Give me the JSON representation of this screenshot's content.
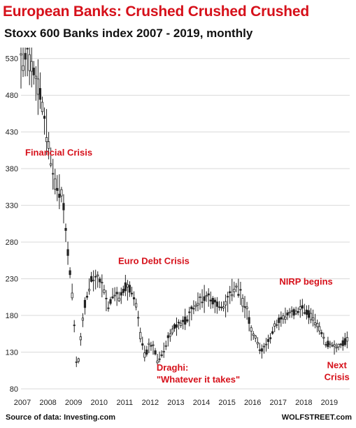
{
  "title": "European Banks: Crushed Crushed Crushed",
  "subtitle": "Stoxx 600 Banks index 2007 - 2019, monthly",
  "source": "Source of data: Investing.com",
  "credit": "WOLFSTREET.com",
  "colors": {
    "title": "#d6101a",
    "candle": "#222222",
    "grid": "#d9d9d9",
    "annotation": "#d6101a"
  },
  "chart_data": {
    "type": "line",
    "style": "monthly candlestick (high-low bars)",
    "title": "European Banks: Crushed Crushed Crushed",
    "subtitle": "Stoxx 600 Banks index 2007 - 2019, monthly",
    "xlabel": "",
    "ylabel": "",
    "x_ticks": [
      "2007",
      "2008",
      "2009",
      "2010",
      "2011",
      "2012",
      "2013",
      "2014",
      "2015",
      "2016",
      "2017",
      "2018",
      "2019"
    ],
    "y_ticks": [
      80,
      130,
      180,
      230,
      280,
      330,
      380,
      430,
      480,
      530
    ],
    "ylim": [
      80,
      545
    ],
    "xlim": [
      2007.0,
      2019.85
    ],
    "grid": true,
    "legend": "none",
    "series": [
      {
        "points": [
          [
            2007.0,
            528
          ],
          [
            2007.25,
            535
          ],
          [
            2007.5,
            512
          ],
          [
            2007.75,
            480
          ],
          [
            2008.0,
            430
          ],
          [
            2008.25,
            375
          ],
          [
            2008.4,
            350
          ],
          [
            2008.6,
            345
          ],
          [
            2008.8,
            275
          ],
          [
            2009.0,
            210
          ],
          [
            2009.15,
            125
          ],
          [
            2009.2,
            100
          ],
          [
            2009.35,
            155
          ],
          [
            2009.5,
            195
          ],
          [
            2009.75,
            230
          ],
          [
            2010.0,
            230
          ],
          [
            2010.25,
            215
          ],
          [
            2010.4,
            190
          ],
          [
            2010.6,
            210
          ],
          [
            2010.85,
            205
          ],
          [
            2011.1,
            220
          ],
          [
            2011.3,
            215
          ],
          [
            2011.5,
            195
          ],
          [
            2011.65,
            155
          ],
          [
            2011.85,
            125
          ],
          [
            2012.0,
            140
          ],
          [
            2012.2,
            135
          ],
          [
            2012.35,
            118
          ],
          [
            2012.55,
            130
          ],
          [
            2012.75,
            148
          ],
          [
            2013.0,
            165
          ],
          [
            2013.25,
            168
          ],
          [
            2013.5,
            175
          ],
          [
            2013.75,
            190
          ],
          [
            2014.0,
            198
          ],
          [
            2014.25,
            205
          ],
          [
            2014.5,
            198
          ],
          [
            2014.75,
            192
          ],
          [
            2015.0,
            195
          ],
          [
            2015.2,
            210
          ],
          [
            2015.4,
            218
          ],
          [
            2015.55,
            212
          ],
          [
            2015.7,
            195
          ],
          [
            2015.85,
            185
          ],
          [
            2016.0,
            158
          ],
          [
            2016.2,
            148
          ],
          [
            2016.4,
            130
          ],
          [
            2016.55,
            138
          ],
          [
            2016.75,
            150
          ],
          [
            2016.9,
            165
          ],
          [
            2017.0,
            168
          ],
          [
            2017.25,
            178
          ],
          [
            2017.5,
            182
          ],
          [
            2017.75,
            185
          ],
          [
            2018.0,
            190
          ],
          [
            2018.2,
            182
          ],
          [
            2018.35,
            180
          ],
          [
            2018.55,
            168
          ],
          [
            2018.75,
            155
          ],
          [
            2018.9,
            140
          ],
          [
            2019.05,
            142
          ],
          [
            2019.25,
            138
          ],
          [
            2019.45,
            137
          ],
          [
            2019.6,
            143
          ],
          [
            2019.75,
            147
          ]
        ]
      }
    ],
    "annotations": [
      {
        "id": "financial",
        "lines": [
          "Financial Crisis"
        ],
        "x": 2007.55,
        "y": 398
      },
      {
        "id": "euro",
        "lines": [
          "Euro Debt Crisis"
        ],
        "x": 2010.8,
        "y": 250
      },
      {
        "id": "draghi",
        "lines": [
          "Draghi:",
          "\"Whatever it takes\""
        ],
        "x": 2012.3,
        "y": 105
      },
      {
        "id": "nirp",
        "lines": [
          "NIRP begins"
        ],
        "x": 2017.1,
        "y": 222
      },
      {
        "id": "next",
        "lines": [
          "Next",
          "Crisis"
        ],
        "x": 2019.35,
        "y": 108
      }
    ]
  }
}
